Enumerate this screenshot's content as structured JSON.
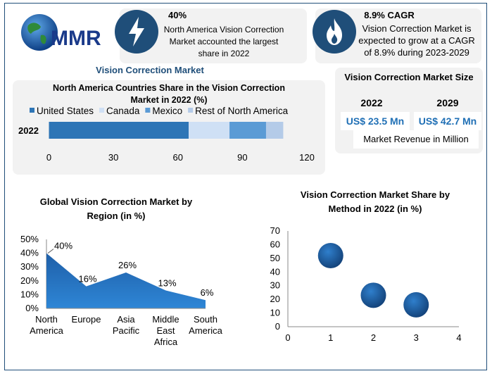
{
  "logo": {
    "text": "MMR"
  },
  "stat1": {
    "value": "40%",
    "text": "North America Vision Correction Market accounted the largest share in 2022",
    "icon": "lightning-icon"
  },
  "stat2": {
    "value": "8.9% CAGR",
    "text": "Vision Correction Market is expected to grow at a CAGR of 8.9% during 2023-2029",
    "icon": "flame-icon"
  },
  "market_title": "Vision Correction Market",
  "size_box": {
    "title": "Vision Correction Market Size",
    "year1": "2022",
    "year2": "2029",
    "value1": "US$ 23.5 Mn",
    "value2": "US$ 42.7 Mn",
    "note": "Market Revenue in Million"
  },
  "colors": {
    "dark_blue": "#1f4e79",
    "mid_blue": "#2e75b6",
    "accent": "#1f6fb5"
  },
  "chart_data": [
    {
      "type": "bar",
      "title": "North America Countries Share in the Vision Correction Market in 2022 (%)",
      "categories": [
        "2022"
      ],
      "series": [
        {
          "name": "United States",
          "values": [
            65
          ],
          "color": "#2e75b6"
        },
        {
          "name": "Canada",
          "values": [
            19
          ],
          "color": "#cfe0f5"
        },
        {
          "name": "Mexico",
          "values": [
            17
          ],
          "color": "#5b9bd5"
        },
        {
          "name": "Rest of North America",
          "values": [
            8
          ],
          "color": "#b4cbe8"
        }
      ],
      "xlim": [
        0,
        120
      ],
      "xticks": [
        "0",
        "30",
        "60",
        "90",
        "120"
      ],
      "orientation": "horizontal",
      "stacked": true,
      "legend": "top"
    },
    {
      "type": "area",
      "title": "Global Vision Correction Market by Region (in %)",
      "categories": [
        "North America",
        "Europe",
        "Asia Pacific",
        "Middle East Africa",
        "South America"
      ],
      "values": [
        40,
        16,
        26,
        13,
        6
      ],
      "data_labels": [
        "40%",
        "16%",
        "26%",
        "13%",
        "6%"
      ],
      "ylim": [
        0,
        50
      ],
      "yticks": [
        "0%",
        "10%",
        "20%",
        "30%",
        "40%",
        "50%"
      ]
    },
    {
      "type": "scatter",
      "title": "Vision Correction Market Share by Method in 2022 (in %)",
      "points": [
        {
          "x": 1,
          "y": 52
        },
        {
          "x": 2,
          "y": 23
        },
        {
          "x": 3,
          "y": 16
        }
      ],
      "xlim": [
        0,
        4
      ],
      "ylim": [
        0,
        70
      ],
      "xticks": [
        "0",
        "1",
        "2",
        "3",
        "4"
      ],
      "yticks": [
        "0",
        "10",
        "20",
        "30",
        "40",
        "50",
        "60",
        "70"
      ]
    }
  ]
}
